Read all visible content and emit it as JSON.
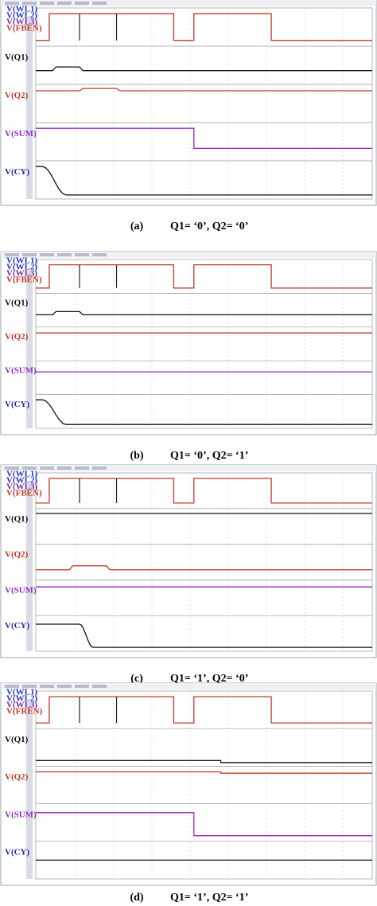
{
  "panels": [
    {
      "signals": [
        "V(WL1)",
        "V(WL2)",
        "V(WL3)",
        "V(FBEN)",
        "V(Q1)",
        "V(Q2)",
        "V(SUM)",
        "V(CY)"
      ],
      "caption": {
        "label": "(a)",
        "text": "Q1= ‘0’, Q2= ‘0’"
      }
    },
    {
      "signals": [
        "V(WL1)",
        "V(WL2)",
        "V(WL3)",
        "V(FBEN)",
        "V(Q1)",
        "V(Q2)",
        "V(SUM)",
        "V(CY)"
      ],
      "caption": {
        "label": "(b)",
        "text": "Q1= ‘0’, Q2= ‘1’"
      }
    },
    {
      "signals": [
        "V(WL1)",
        "V(WL2)",
        "V(WL3)",
        "V(FBEN)",
        "V(Q1)",
        "V(Q2)",
        "V(SUM)",
        "V(CY)"
      ],
      "caption": {
        "label": "(c)",
        "text": "Q1= ‘1’, Q2= ‘0’"
      }
    },
    {
      "signals": [
        "V(WL1)",
        "V(WL2)",
        "V(WL3)",
        "V(FREN)",
        "V(Q1)",
        "V(Q2)",
        "V(SUM)",
        "V(CY)"
      ],
      "caption": {
        "label": "(d)",
        "text": "Q1= ‘1’, Q2= ‘1’"
      }
    }
  ]
}
